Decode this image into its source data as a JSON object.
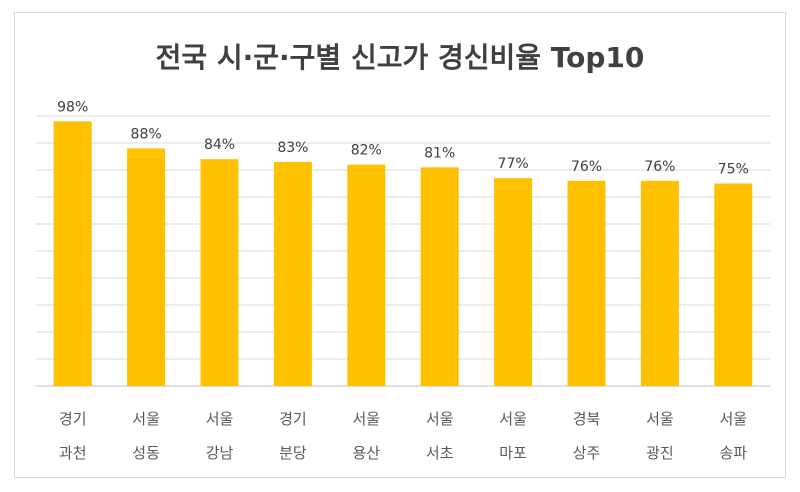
{
  "chart_data": {
    "type": "bar",
    "title": "전국 시·군·구별 신고가 경신비율 Top10",
    "categories": [
      [
        "경기",
        "과천"
      ],
      [
        "서울",
        "성동"
      ],
      [
        "서울",
        "강남"
      ],
      [
        "경기",
        "분당"
      ],
      [
        "서울",
        "용산"
      ],
      [
        "서울",
        "서초"
      ],
      [
        "서울",
        "마포"
      ],
      [
        "경북",
        "상주"
      ],
      [
        "서울",
        "광진"
      ],
      [
        "서울",
        "송파"
      ]
    ],
    "values": [
      98,
      88,
      84,
      83,
      82,
      81,
      77,
      76,
      76,
      75
    ],
    "data_labels": [
      "98%",
      "88%",
      "84%",
      "83%",
      "82%",
      "81%",
      "77%",
      "76%",
      "76%",
      "75%"
    ],
    "ylim": [
      0,
      100
    ],
    "grid": true,
    "legend": "none",
    "bar_color": "#FFC000"
  }
}
